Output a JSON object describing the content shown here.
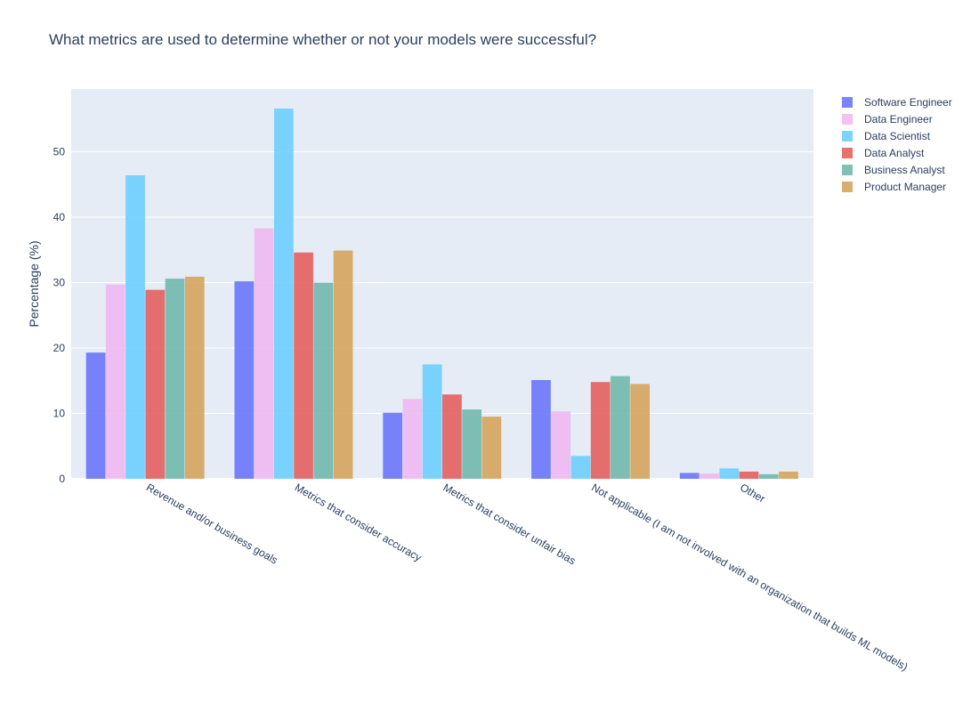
{
  "chart_data": {
    "type": "bar",
    "title": "What metrics are used to determine whether or not your models were successful?",
    "xlabel": "",
    "ylabel": "Percentage (%)",
    "ylim": [
      0,
      59.6
    ],
    "yticks": [
      0,
      10,
      20,
      30,
      40,
      50
    ],
    "grid": true,
    "legend_position": "top-right",
    "categories": [
      "Revenue and/or business goals",
      "Metrics that consider accuracy",
      "Metrics that consider unfair bias",
      "Not applicable (I am not involved with an organization that builds ML models)",
      "Other"
    ],
    "series": [
      {
        "name": "Software Engineer",
        "color": "#636efa",
        "values": [
          19.3,
          30.2,
          10.1,
          15.1,
          0.9
        ]
      },
      {
        "name": "Data Engineer",
        "color": "#f0b5f0",
        "values": [
          29.7,
          38.3,
          12.2,
          10.3,
          0.8
        ]
      },
      {
        "name": "Data Scientist",
        "color": "#66ccff",
        "values": [
          46.4,
          56.6,
          17.5,
          3.5,
          1.6
        ]
      },
      {
        "name": "Data Analyst",
        "color": "#e45756",
        "values": [
          28.9,
          34.6,
          12.9,
          14.8,
          1.1
        ]
      },
      {
        "name": "Business Analyst",
        "color": "#6ab5a8",
        "values": [
          30.6,
          30.0,
          10.6,
          15.7,
          0.7
        ]
      },
      {
        "name": "Product Manager",
        "color": "#d4a054",
        "values": [
          30.9,
          34.9,
          9.5,
          14.5,
          1.1
        ]
      }
    ]
  }
}
